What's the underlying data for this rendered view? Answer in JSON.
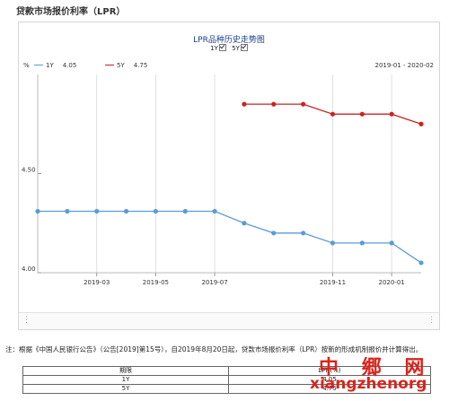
{
  "page": {
    "title": "贷款市场报价利率（LPR）"
  },
  "chart_data": {
    "type": "line",
    "title": "LPR品种历史走势图",
    "ylabel": "%",
    "date_range": "2019-01 - 2020-02",
    "legend_checks": [
      "1Y",
      "5Y"
    ],
    "x": [
      "2019-01",
      "2019-02",
      "2019-03",
      "2019-04",
      "2019-05",
      "2019-06",
      "2019-07",
      "2019-08",
      "2019-09",
      "2019-10",
      "2019-11",
      "2019-12",
      "2020-01",
      "2020-02"
    ],
    "x_ticks": [
      "2019-03",
      "2019-05",
      "2019-07",
      "2019-11",
      "2020-01"
    ],
    "y_ticks": [
      "4.00",
      "4.50"
    ],
    "ylim": [
      4.0,
      5.0
    ],
    "grid": "vertical",
    "series": [
      {
        "name": "1Y",
        "latest": "4.05",
        "color": "#5b9bd5",
        "values": [
          4.31,
          4.31,
          4.31,
          4.31,
          4.31,
          4.31,
          4.31,
          4.25,
          4.2,
          4.2,
          4.15,
          4.15,
          4.15,
          4.05
        ]
      },
      {
        "name": "5Y",
        "latest": "4.75",
        "color": "#cc2222",
        "values": [
          null,
          null,
          null,
          null,
          null,
          null,
          null,
          4.85,
          4.85,
          4.85,
          4.8,
          4.8,
          4.8,
          4.75
        ]
      }
    ]
  },
  "notes": {
    "text": "注：根据《中国人民银行公告》（公告[2019]第15号），自2019年8月20日起，贷款市场报价利率（LPR）按新的形成机制报价并计算得出。"
  },
  "table": {
    "headers": [
      "期限",
      "LPR(%)"
    ],
    "rows": [
      [
        "1Y",
        "4.05"
      ],
      [
        "5Y",
        "4.75"
      ]
    ]
  },
  "watermark": {
    "cn": "中 郷 网",
    "en": "xiangzhenorg"
  }
}
